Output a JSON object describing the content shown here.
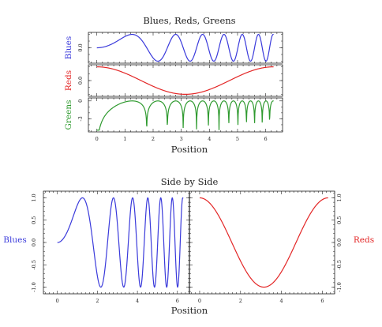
{
  "figure_top": {
    "title": "Blues, Reds, Greens",
    "xlabel": "Position",
    "xticks": [
      "0",
      "1",
      "2",
      "3",
      "4",
      "5",
      "6"
    ]
  },
  "figure_bottom": {
    "title": "Side by Side",
    "xlabel": "Position",
    "left_xticks": [
      "0",
      "2",
      "4",
      "6"
    ],
    "right_xticks": [
      "0",
      "2",
      "4",
      "6"
    ],
    "yticks": [
      "1.0",
      "0.5",
      "0.0",
      "-0.5",
      "-1.0"
    ]
  },
  "chart_data": [
    {
      "type": "line",
      "title": "Blues, Reds, Greens",
      "xlabel": "Position",
      "ylabel": "Blues",
      "xlim": [
        -0.3,
        6.6
      ],
      "ylim": [
        -1.15,
        1.15
      ],
      "yticks": [
        "0.0"
      ],
      "series": [
        {
          "name": "Blues",
          "color": "#3a3adb",
          "function": "sin(x^2)",
          "x_range": [
            0,
            6.28
          ]
        }
      ]
    },
    {
      "type": "line",
      "ylabel": "Reds",
      "xlim": [
        -0.3,
        6.6
      ],
      "ylim": [
        -1.15,
        1.15
      ],
      "yticks": [
        "0.0"
      ],
      "series": [
        {
          "name": "Reds",
          "color": "#e32626",
          "function": "cos(x)",
          "x_range": [
            0,
            6.28
          ]
        }
      ]
    },
    {
      "type": "line",
      "ylabel": "Greens",
      "xlim": [
        -0.3,
        6.6
      ],
      "ylim": [
        -5.2,
        0.5
      ],
      "yticks": [
        "0",
        "-3"
      ],
      "series": [
        {
          "name": "Greens",
          "color": "#2f9a2f",
          "function": "log|sin(x^2)|",
          "x_range": [
            0,
            6.28
          ]
        }
      ]
    },
    {
      "type": "line",
      "title": "Side by Side",
      "xlabel": "Position",
      "ylabel": "Blues",
      "xlim": [
        -0.7,
        6.6
      ],
      "ylim": [
        -1.15,
        1.15
      ],
      "series": [
        {
          "name": "Blues",
          "color": "#3a3adb",
          "function": "sin(x^2)",
          "x_range": [
            0,
            6.28
          ]
        }
      ]
    },
    {
      "type": "line",
      "ylabel": "Reds",
      "xlim": [
        -0.5,
        6.6
      ],
      "ylim": [
        -1.15,
        1.15
      ],
      "series": [
        {
          "name": "Reds",
          "color": "#e32626",
          "function": "cos(x)",
          "x_range": [
            0,
            6.28
          ]
        }
      ]
    }
  ]
}
